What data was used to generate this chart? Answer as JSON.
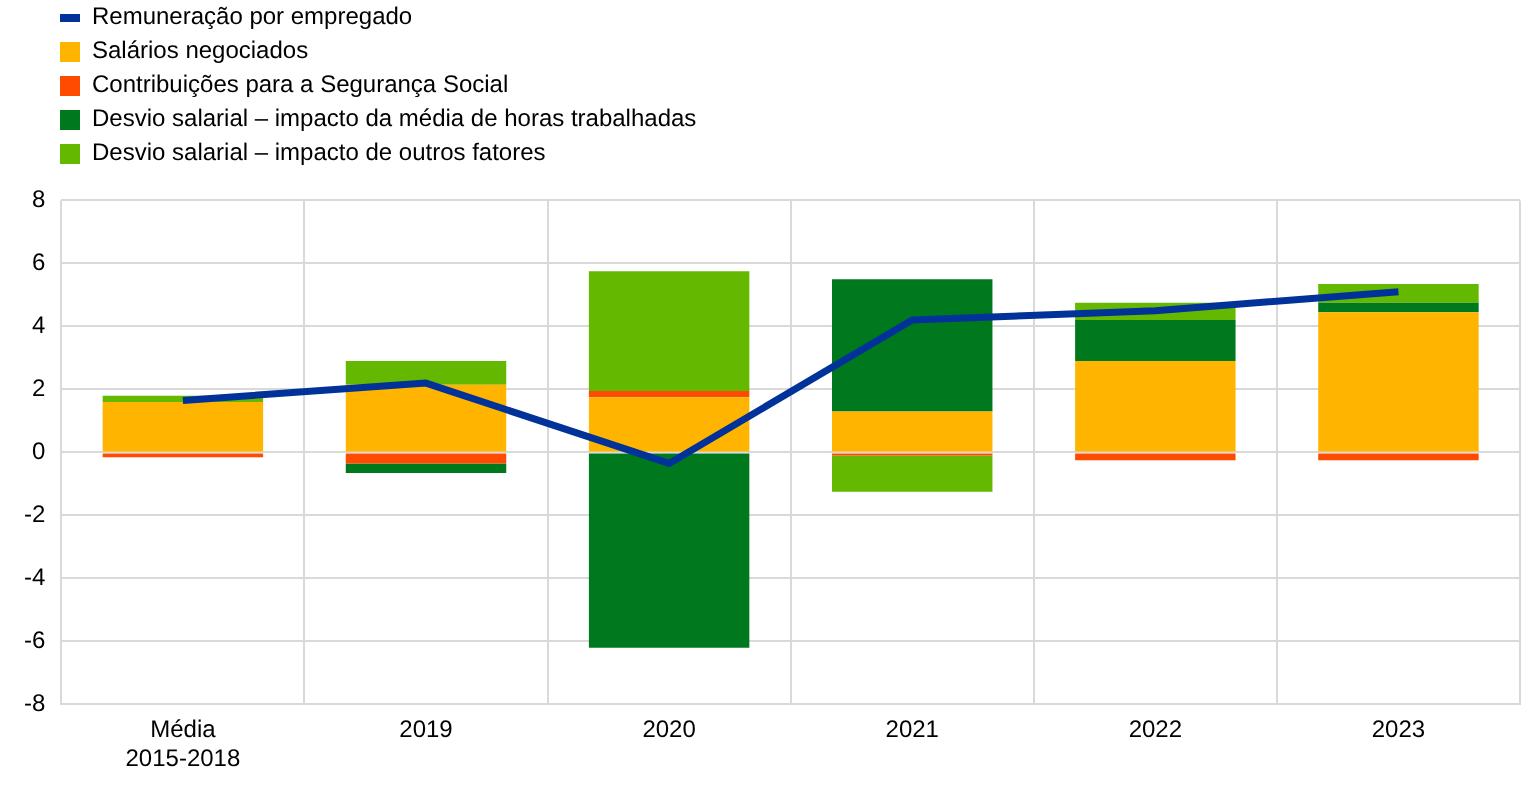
{
  "chart_data": {
    "type": "bar",
    "stacked": true,
    "categories": [
      "Média 2015-2018",
      "2019",
      "2020",
      "2021",
      "2022",
      "2023"
    ],
    "series": [
      {
        "name": "Remuneração por empregado",
        "type": "line",
        "color": "#003299",
        "values": [
          1.65,
          2.2,
          -0.35,
          4.2,
          4.5,
          5.1
        ]
      },
      {
        "name": "Salários negociados",
        "color": "#ffb400",
        "values": [
          1.6,
          2.15,
          1.75,
          1.3,
          2.9,
          4.45
        ]
      },
      {
        "name": "Contribuições para a Segurança Social",
        "color": "#ff4b00",
        "values": [
          -0.15,
          -0.35,
          0.2,
          -0.1,
          -0.25,
          -0.25
        ]
      },
      {
        "name": "Desvio salarial – impacto da média de horas trabalhadas",
        "color": "#00781e",
        "values": [
          0,
          -0.3,
          -6.2,
          4.2,
          1.3,
          0.3
        ]
      },
      {
        "name": "Desvio salarial – impacto de outros fatores",
        "color": "#65b800",
        "values": [
          0.2,
          0.75,
          3.8,
          -1.15,
          0.55,
          0.6
        ]
      }
    ],
    "ylim": [
      -8,
      8
    ],
    "yticks": [
      -8,
      -6,
      -4,
      -2,
      0,
      2,
      4,
      6,
      8
    ],
    "grid": true,
    "legend": "top left"
  }
}
